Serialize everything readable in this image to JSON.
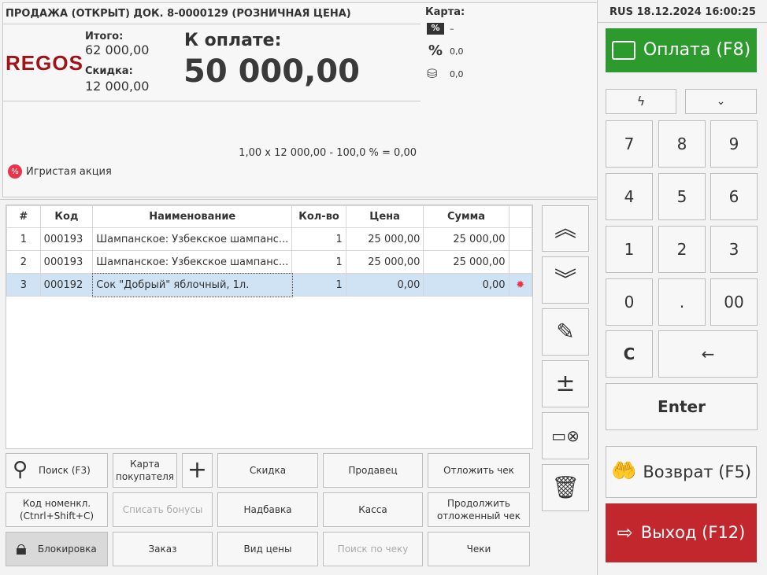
{
  "header": {
    "title": "ПРОДАЖА (ОТКРЫТ) ДОК. 8-0000129  (РОЗНИЧНАЯ ЦЕНА)",
    "logo": "REGOS",
    "total_label": "Итого:",
    "total_value": "62 000,00",
    "discount_label": "Скидка:",
    "discount_value": "12 000,00",
    "pay_label": "К оплате:",
    "pay_value": "50 000,00",
    "calc_line": "1,00 x 12 000,00 - 100,0 % = 0,00",
    "promo": "Игристая акция"
  },
  "card": {
    "label": "Карта:",
    "discount_value": "–",
    "percent_value": "0,0",
    "bonus_value": "0,0"
  },
  "status": {
    "datetime": "RUS 18.12.2024 16:00:25"
  },
  "right": {
    "pay": "Оплата (F8)",
    "keys": [
      "7",
      "8",
      "9",
      "4",
      "5",
      "6",
      "1",
      "2",
      "3",
      "0",
      ".",
      "00",
      "C",
      "←"
    ],
    "enter": "Enter",
    "return": "Возврат (F5)",
    "exit": "Выход (F12)"
  },
  "table": {
    "columns": [
      "#",
      "Код",
      "Наименование",
      "Кол-во",
      "Цена",
      "Сумма"
    ],
    "rows": [
      {
        "n": "1",
        "code": "000193",
        "name": "Шампанское: Узбекское шампанс...",
        "qty": "1",
        "price": "25 000,00",
        "sum": "25 000,00",
        "promo": false
      },
      {
        "n": "2",
        "code": "000193",
        "name": "Шампанское: Узбекское шампанс...",
        "qty": "1",
        "price": "25 000,00",
        "sum": "25 000,00",
        "promo": false
      },
      {
        "n": "3",
        "code": "000192",
        "name": "Сок \"Добрый\" яблочный, 1л.",
        "qty": "1",
        "price": "0,00",
        "sum": "0,00",
        "promo": true
      }
    ]
  },
  "buttons": {
    "search": "Поиск (F3)",
    "customer_card": "Карта покупателя",
    "discount": "Скидка",
    "seller": "Продавец",
    "postpone": "Отложить чек",
    "item_code": "Код номенкл. (Ctnrl+Shift+C)",
    "write_off_bonus": "Списать бонусы",
    "markup": "Надбавка",
    "cash": "Касса",
    "resume": "Продолжить отложенный чек",
    "lock": "Блокировка",
    "order": "Заказ",
    "price_type": "Вид цены",
    "receipt_search": "Поиск по чеку",
    "receipts": "Чеки"
  },
  "colors": {
    "pay": "#2c9a2c",
    "exit": "#c1272d",
    "selected_row": "#cfe3f5",
    "logo": "#a01418"
  }
}
